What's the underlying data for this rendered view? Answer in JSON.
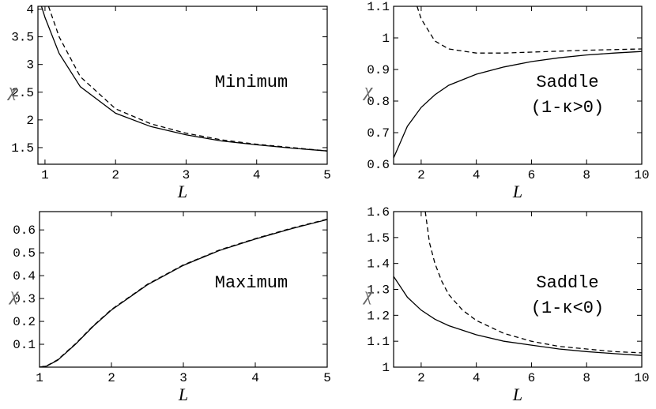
{
  "chart_data": [
    {
      "type": "line",
      "annotation": [
        "Minimum"
      ],
      "xlabel": "L",
      "ylabel": "χ",
      "xlim": [
        0.9,
        5
      ],
      "ylim": [
        1.2,
        4.05
      ],
      "xticks": [
        1,
        2,
        3,
        4,
        5
      ],
      "yticks": [
        1.5,
        2,
        2.5,
        3,
        3.5,
        4
      ],
      "yticklabels": [
        "1.5",
        "2",
        "2.5",
        "3",
        "3.5",
        "4"
      ],
      "series": [
        {
          "style": "solid",
          "x": [
            0.95,
            1.0,
            1.2,
            1.5,
            2.0,
            2.5,
            3.0,
            3.5,
            4.0,
            4.5,
            5.0
          ],
          "y": [
            4.05,
            3.85,
            3.2,
            2.6,
            2.12,
            1.88,
            1.73,
            1.62,
            1.55,
            1.49,
            1.44
          ]
        },
        {
          "style": "dashed",
          "x": [
            1.05,
            1.2,
            1.5,
            2.0,
            2.5,
            3.0,
            3.5,
            4.0,
            4.5,
            5.0
          ],
          "y": [
            4.05,
            3.5,
            2.78,
            2.2,
            1.93,
            1.76,
            1.64,
            1.56,
            1.5,
            1.44
          ]
        }
      ]
    },
    {
      "type": "line",
      "annotation": [
        "Saddle",
        "(1-κ>0)"
      ],
      "xlabel": "L",
      "ylabel": "χ",
      "xlim": [
        1,
        10
      ],
      "ylim": [
        0.6,
        1.1
      ],
      "xticks": [
        2,
        4,
        6,
        8,
        10
      ],
      "yticks": [
        0.6,
        0.7,
        0.8,
        0.9,
        1,
        1.1
      ],
      "yticklabels": [
        "0.6",
        "0.7",
        "0.8",
        "0.9",
        "1",
        "1.1"
      ],
      "series": [
        {
          "style": "solid",
          "x": [
            1.0,
            1.5,
            2.0,
            2.5,
            3.0,
            4.0,
            5.0,
            6.0,
            7.0,
            8.0,
            9.0,
            10.0
          ],
          "y": [
            0.62,
            0.72,
            0.78,
            0.82,
            0.85,
            0.885,
            0.908,
            0.925,
            0.937,
            0.946,
            0.952,
            0.957
          ]
        },
        {
          "style": "dashed",
          "x": [
            1.85,
            2.0,
            2.5,
            3.0,
            4.0,
            5.0,
            6.0,
            7.0,
            8.0,
            9.0,
            10.0
          ],
          "y": [
            1.1,
            1.06,
            0.99,
            0.965,
            0.952,
            0.952,
            0.955,
            0.958,
            0.961,
            0.963,
            0.965
          ]
        }
      ]
    },
    {
      "type": "line",
      "annotation": [
        "Maximum"
      ],
      "xlabel": "L",
      "ylabel": "χ",
      "xlim": [
        1,
        5
      ],
      "ylim": [
        0,
        0.68
      ],
      "xticks": [
        1,
        2,
        3,
        4,
        5
      ],
      "yticks": [
        0.1,
        0.2,
        0.3,
        0.4,
        0.5,
        0.6
      ],
      "yticklabels": [
        "0.1",
        "0.2",
        "0.3",
        "0.4",
        "0.5",
        "0.6"
      ],
      "series": [
        {
          "style": "solid",
          "x": [
            1.0,
            1.1,
            1.25,
            1.5,
            1.75,
            2.0,
            2.5,
            3.0,
            3.5,
            4.0,
            4.5,
            5.0
          ],
          "y": [
            0.0,
            0.005,
            0.03,
            0.1,
            0.18,
            0.25,
            0.36,
            0.445,
            0.51,
            0.56,
            0.605,
            0.645
          ]
        },
        {
          "style": "dashed",
          "x": [
            1.0,
            1.1,
            1.25,
            1.5,
            1.75,
            2.0,
            2.5,
            3.0,
            3.5,
            4.0,
            4.5,
            5.0
          ],
          "y": [
            0.0,
            0.006,
            0.032,
            0.102,
            0.182,
            0.252,
            0.362,
            0.447,
            0.512,
            0.562,
            0.607,
            0.647
          ]
        }
      ]
    },
    {
      "type": "line",
      "annotation": [
        "Saddle",
        "(1-κ<0)"
      ],
      "xlabel": "L",
      "ylabel": "χ",
      "xlim": [
        1,
        10
      ],
      "ylim": [
        1,
        1.6
      ],
      "xticks": [
        2,
        4,
        6,
        8,
        10
      ],
      "yticks": [
        1,
        1.1,
        1.2,
        1.3,
        1.4,
        1.5,
        1.6
      ],
      "yticklabels": [
        "1",
        "1.1",
        "1.2",
        "1.3",
        "1.4",
        "1.5",
        "1.6"
      ],
      "series": [
        {
          "style": "solid",
          "x": [
            1.0,
            1.5,
            2.0,
            2.5,
            3.0,
            4.0,
            5.0,
            6.0,
            7.0,
            8.0,
            9.0,
            10.0
          ],
          "y": [
            1.35,
            1.27,
            1.22,
            1.185,
            1.16,
            1.125,
            1.1,
            1.085,
            1.07,
            1.06,
            1.052,
            1.045
          ]
        },
        {
          "style": "dashed",
          "x": [
            2.15,
            2.3,
            2.5,
            2.75,
            3.0,
            3.5,
            4.0,
            5.0,
            6.0,
            7.0,
            8.0,
            9.0,
            10.0
          ],
          "y": [
            1.6,
            1.48,
            1.4,
            1.33,
            1.28,
            1.22,
            1.18,
            1.13,
            1.1,
            1.08,
            1.07,
            1.06,
            1.055
          ]
        }
      ]
    }
  ]
}
